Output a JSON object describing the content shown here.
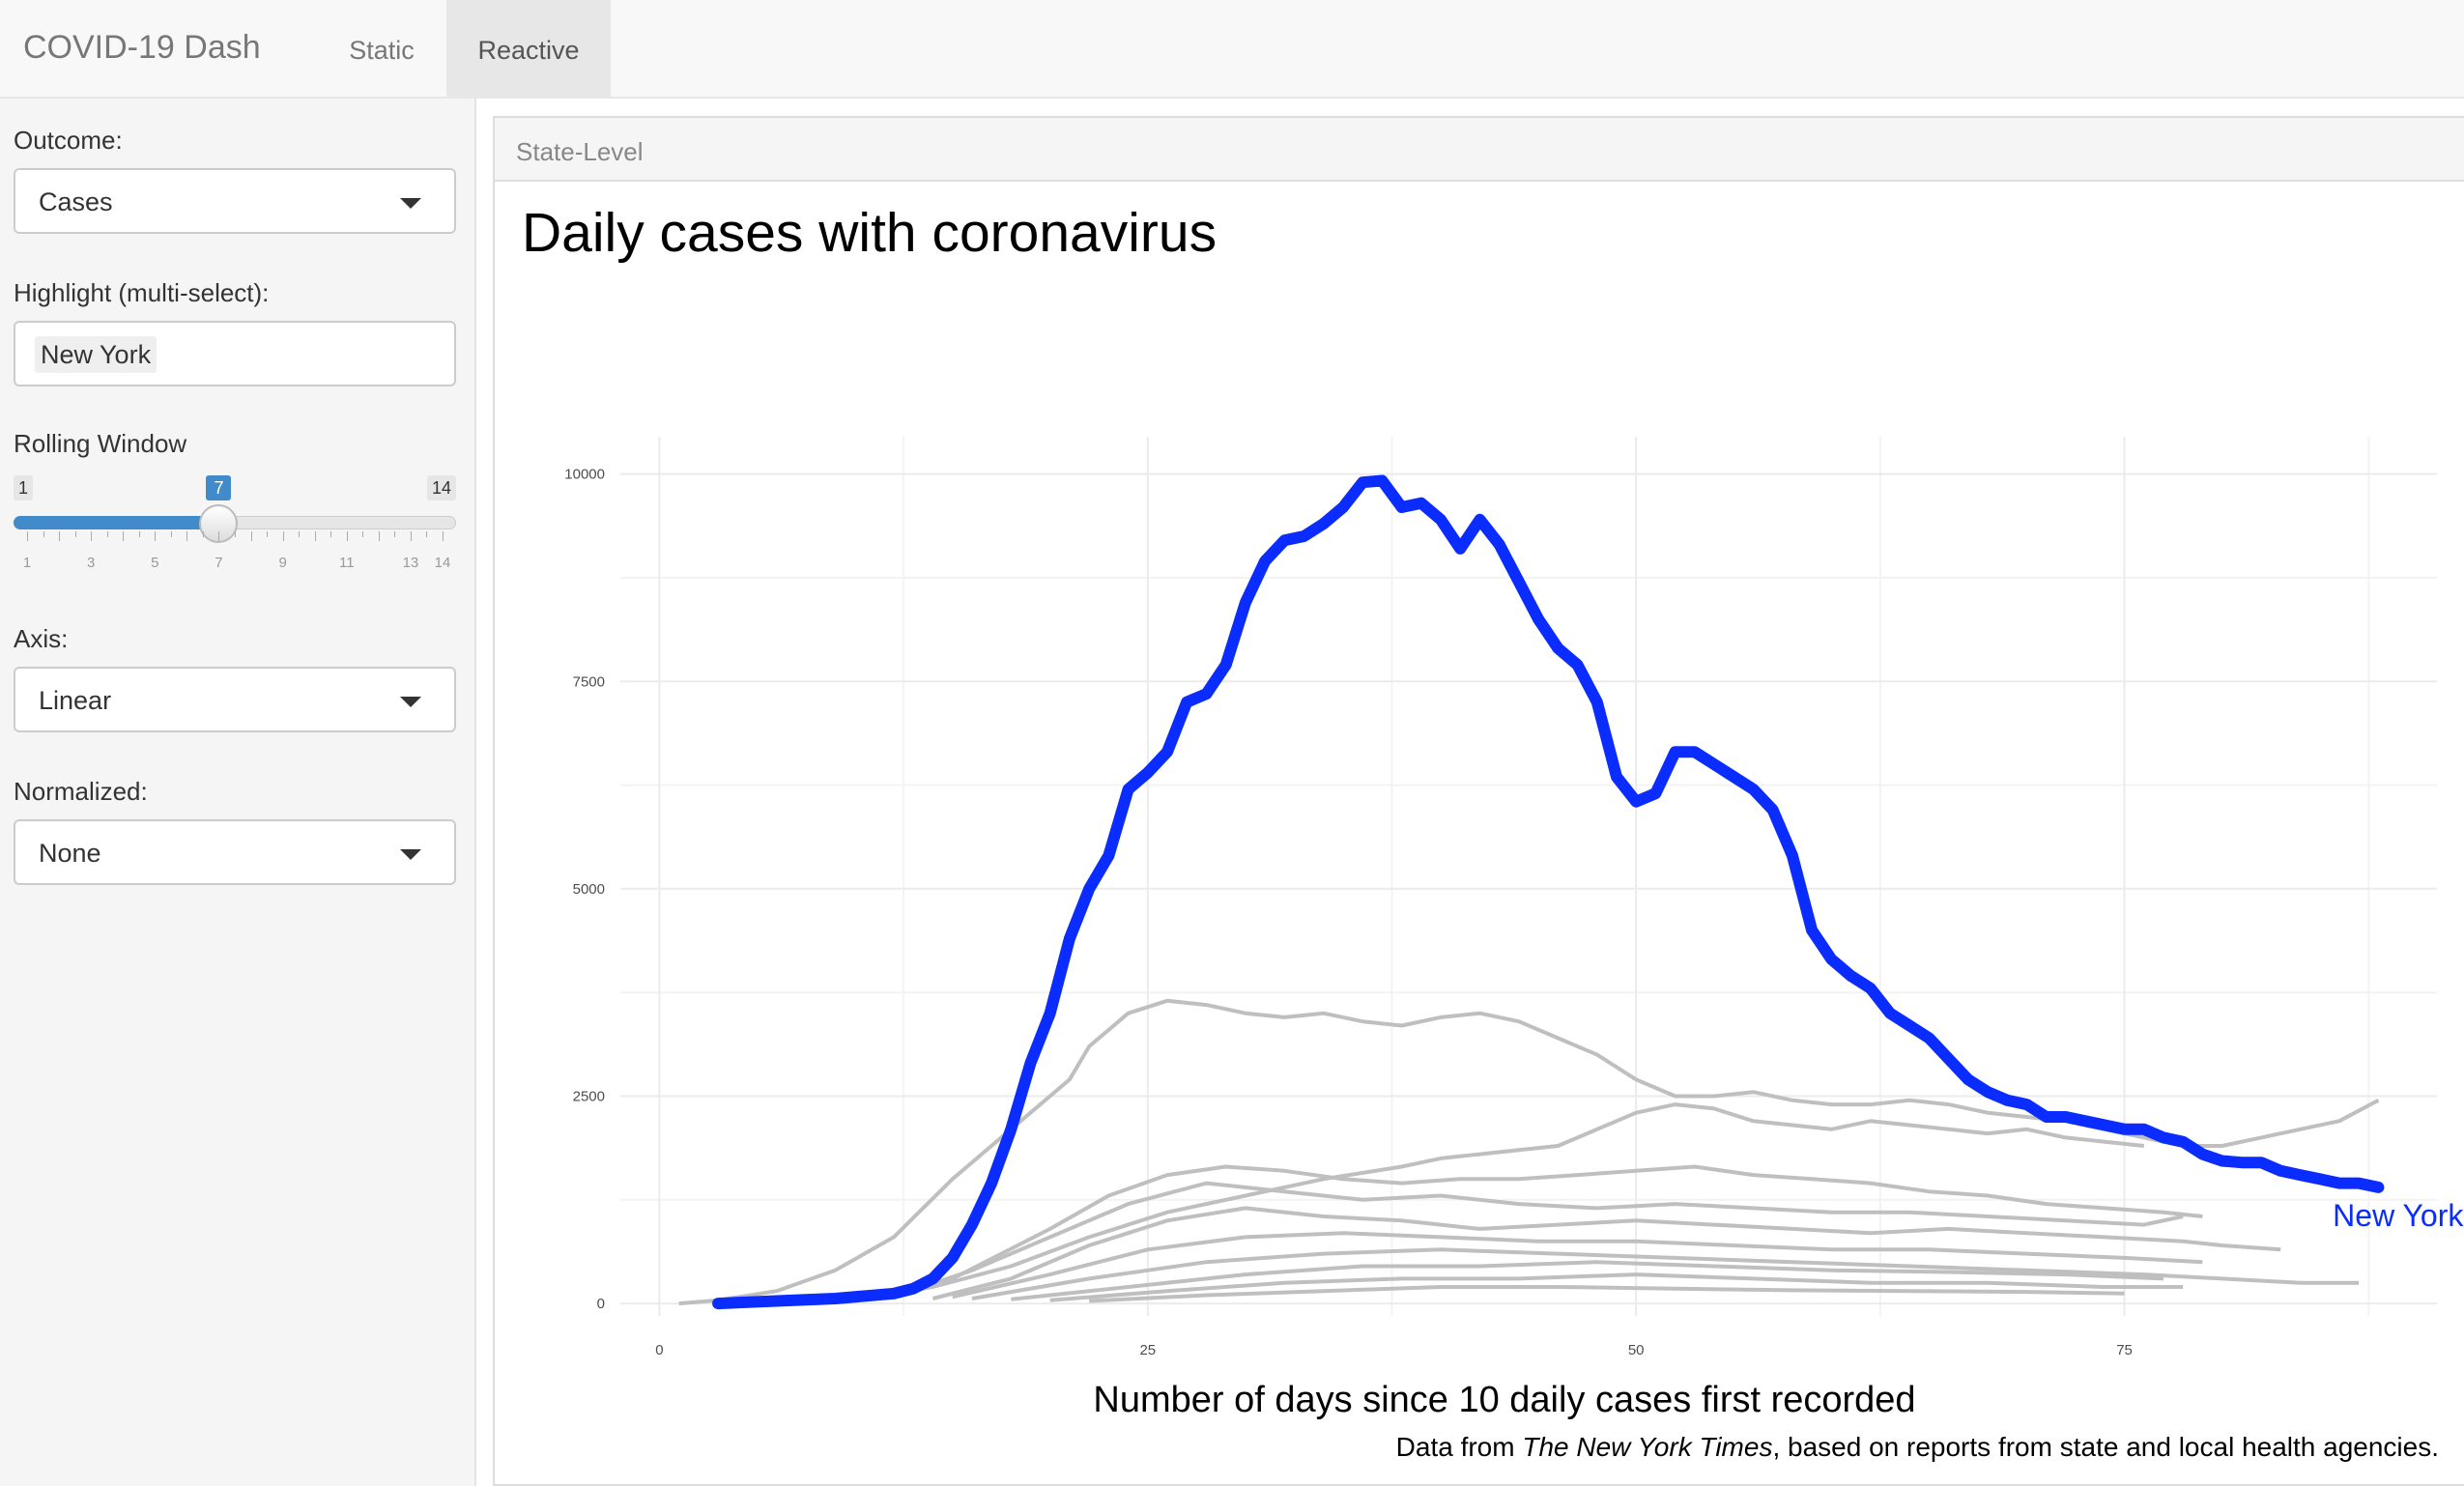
{
  "app": {
    "brand": "COVID-19 Dash"
  },
  "nav": {
    "tabs": [
      {
        "label": "Static"
      },
      {
        "label": "Reactive",
        "active": true
      }
    ]
  },
  "sidebar": {
    "outcome": {
      "label": "Outcome:",
      "value": "Cases"
    },
    "highlight": {
      "label": "Highlight (multi-select):",
      "values": [
        "New York"
      ]
    },
    "rolling": {
      "label": "Rolling Window",
      "min": 1,
      "max": 14,
      "value": 7,
      "ticks": [
        "1",
        "3",
        "5",
        "7",
        "9",
        "11",
        "13",
        "14"
      ]
    },
    "axis": {
      "label": "Axis:",
      "value": "Linear"
    },
    "normalized": {
      "label": "Normalized:",
      "value": "None"
    }
  },
  "panel": {
    "title": "State-Level",
    "caption_prefix": "Data from ",
    "caption_source": "The New York Times",
    "caption_suffix": ", based on reports from state and local health agencies."
  },
  "colors": {
    "highlight": "#0a2cff",
    "others": "#bfbfbf",
    "slider": "#428bca"
  },
  "chart_data": {
    "type": "line",
    "title": "Daily cases with coronavirus",
    "xlabel": "Number of days since 10 daily cases first recorded",
    "ylabel": "",
    "xlim": [
      -2,
      91
    ],
    "ylim": [
      -150,
      10450
    ],
    "xticks": [
      0,
      25,
      50,
      75
    ],
    "yticks": [
      0,
      2500,
      5000,
      7500,
      10000
    ],
    "grid": true,
    "legend": "none",
    "highlight": {
      "name": "New York",
      "x": [
        3,
        6,
        9,
        12,
        13,
        14,
        15,
        16,
        17,
        18,
        19,
        20,
        21,
        22,
        23,
        24,
        25,
        26,
        27,
        28,
        29,
        30,
        31,
        32,
        33,
        34,
        35,
        36,
        37,
        38,
        39,
        40,
        41,
        42,
        43,
        44,
        45,
        46,
        47,
        48,
        49,
        50,
        51,
        52,
        53,
        54,
        55,
        56,
        57,
        58,
        59,
        60,
        61,
        62,
        63,
        64,
        65,
        66,
        67,
        68,
        69,
        70,
        71,
        72,
        73,
        74,
        75,
        76,
        77,
        78,
        79,
        80,
        81,
        82,
        83,
        84,
        85,
        86,
        87,
        88
      ],
      "y": [
        0,
        30,
        60,
        120,
        180,
        300,
        550,
        950,
        1450,
        2100,
        2900,
        3500,
        4400,
        5000,
        5400,
        6200,
        6400,
        6650,
        7250,
        7350,
        7700,
        8450,
        8950,
        9200,
        9250,
        9400,
        9600,
        9900,
        9920,
        9600,
        9650,
        9450,
        9100,
        9450,
        9150,
        8700,
        8250,
        7900,
        7700,
        7250,
        6350,
        6050,
        6150,
        6650,
        6650,
        6500,
        6350,
        6200,
        5950,
        5400,
        4500,
        4150,
        3950,
        3800,
        3500,
        3350,
        3200,
        2950,
        2700,
        2550,
        2450,
        2400,
        2250,
        2250,
        2200,
        2150,
        2100,
        2100,
        2000,
        1950,
        1800,
        1720,
        1700,
        1700,
        1600,
        1550,
        1500,
        1450,
        1450,
        1400
      ]
    },
    "others": [
      {
        "x": [
          1,
          3,
          6,
          9,
          12,
          15,
          18,
          21,
          22,
          24,
          26,
          28,
          30,
          32,
          34,
          36,
          38,
          40,
          42,
          44,
          46,
          48,
          50,
          52,
          54,
          56,
          58,
          60,
          62,
          64,
          66,
          68,
          70,
          72,
          74,
          76,
          78,
          80,
          82,
          84,
          86,
          88
        ],
        "y": [
          0,
          40,
          150,
          400,
          800,
          1500,
          2100,
          2700,
          3100,
          3500,
          3650,
          3600,
          3500,
          3450,
          3500,
          3400,
          3350,
          3450,
          3500,
          3400,
          3200,
          3000,
          2700,
          2500,
          2500,
          2550,
          2450,
          2400,
          2400,
          2450,
          2400,
          2300,
          2250,
          2200,
          2100,
          2000,
          1900,
          1900,
          2000,
          2100,
          2200,
          2450
        ]
      },
      {
        "x": [
          10,
          14,
          18,
          22,
          26,
          30,
          34,
          38,
          40,
          42,
          44,
          46,
          48,
          50,
          52,
          54,
          56,
          58,
          60,
          62,
          64,
          66,
          68,
          70,
          72,
          74,
          76
        ],
        "y": [
          50,
          200,
          450,
          800,
          1100,
          1300,
          1500,
          1650,
          1750,
          1800,
          1850,
          1900,
          2100,
          2300,
          2400,
          2350,
          2200,
          2150,
          2100,
          2200,
          2150,
          2100,
          2050,
          2100,
          2000,
          1950,
          1900
        ]
      },
      {
        "x": [
          10,
          15,
          20,
          23,
          26,
          29,
          32,
          35,
          38,
          41,
          44,
          47,
          50,
          53,
          56,
          59,
          62,
          65,
          68,
          71,
          74,
          77,
          79
        ],
        "y": [
          40,
          300,
          900,
          1300,
          1550,
          1650,
          1600,
          1500,
          1450,
          1500,
          1500,
          1550,
          1600,
          1650,
          1550,
          1500,
          1450,
          1350,
          1300,
          1200,
          1150,
          1100,
          1050
        ]
      },
      {
        "x": [
          12,
          16,
          20,
          24,
          28,
          32,
          36,
          40,
          44,
          48,
          52,
          56,
          60,
          64,
          68,
          72,
          76,
          78
        ],
        "y": [
          80,
          400,
          800,
          1200,
          1450,
          1350,
          1250,
          1300,
          1200,
          1150,
          1200,
          1150,
          1100,
          1100,
          1050,
          1000,
          950,
          1050
        ]
      },
      {
        "x": [
          14,
          18,
          22,
          26,
          30,
          34,
          38,
          42,
          46,
          50,
          54,
          58,
          62,
          66,
          70,
          74,
          78,
          80,
          83
        ],
        "y": [
          60,
          300,
          700,
          1000,
          1150,
          1050,
          1000,
          900,
          950,
          1000,
          950,
          900,
          850,
          900,
          850,
          800,
          750,
          700,
          650
        ]
      },
      {
        "x": [
          15,
          20,
          25,
          30,
          35,
          40,
          45,
          50,
          55,
          60,
          65,
          70,
          75,
          79
        ],
        "y": [
          80,
          350,
          650,
          800,
          850,
          800,
          750,
          750,
          700,
          650,
          650,
          600,
          550,
          500
        ]
      },
      {
        "x": [
          16,
          22,
          28,
          34,
          40,
          46,
          52,
          58,
          64,
          70,
          76,
          80,
          84,
          87
        ],
        "y": [
          60,
          300,
          500,
          600,
          650,
          600,
          550,
          500,
          450,
          400,
          350,
          300,
          250,
          250
        ]
      },
      {
        "x": [
          18,
          24,
          30,
          36,
          42,
          48,
          54,
          60,
          66,
          72,
          77
        ],
        "y": [
          50,
          200,
          350,
          450,
          450,
          500,
          450,
          400,
          380,
          350,
          300
        ]
      },
      {
        "x": [
          20,
          26,
          32,
          38,
          44,
          50,
          56,
          62,
          68,
          74,
          78
        ],
        "y": [
          40,
          150,
          250,
          300,
          300,
          350,
          300,
          250,
          250,
          200,
          200
        ]
      },
      {
        "x": [
          22,
          28,
          34,
          40,
          46,
          52,
          58,
          64,
          70,
          75
        ],
        "y": [
          30,
          100,
          150,
          200,
          200,
          180,
          160,
          150,
          140,
          120
        ]
      }
    ],
    "annotation": {
      "text": "New York",
      "x": 88,
      "y": 1400
    }
  }
}
